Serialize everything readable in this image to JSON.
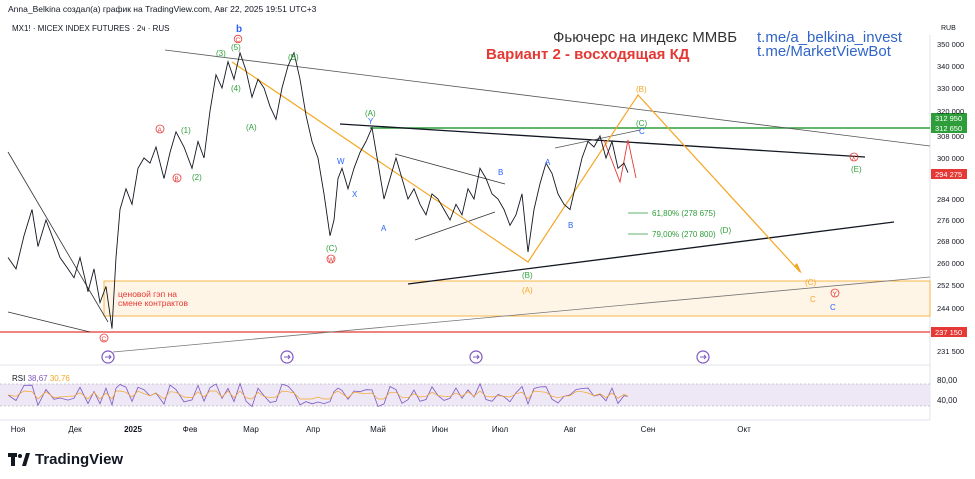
{
  "header": {
    "author_line": "Anna_Belkina создал(а) график на TradingView.com, Авг 22, 2025 19:51 UTC+3",
    "symbol_line": "MX1! · MICEX INDEX FUTURES · 2ч · RUS",
    "currency": "RUB"
  },
  "annotations": {
    "title": "Фьючерс на индекс ММВБ",
    "subtitle": "Вариант 2 - восходящая КД",
    "link1": "t.me/a_belkina_invest",
    "link2": "t.me/MarketViewBot",
    "gap_label_1": "ценовой гэп на",
    "gap_label_2": "смене контрактов",
    "fib_618": "61,80% (278 675)",
    "fib_79": "79,00% (270 800)"
  },
  "brand": "TradingView",
  "colors": {
    "green": "#2e9e3a",
    "red": "#e53935",
    "blue": "#2962ff",
    "orange": "#f5a623",
    "purple": "#7e57c2"
  },
  "chart_data": {
    "type": "line",
    "ylim": [
      226000,
      356000
    ],
    "yticks": [
      {
        "v": 350000,
        "label": "350 000"
      },
      {
        "v": 340000,
        "label": "340 000"
      },
      {
        "v": 330000,
        "label": "330 000"
      },
      {
        "v": 320000,
        "label": "320 000"
      },
      {
        "v": 308000,
        "label": "308 000"
      },
      {
        "v": 300000,
        "label": "300 000"
      },
      {
        "v": 284000,
        "label": "284 000"
      },
      {
        "v": 276000,
        "label": "276 000"
      },
      {
        "v": 268000,
        "label": "268 000"
      },
      {
        "v": 260000,
        "label": "260 000"
      },
      {
        "v": 252500,
        "label": "252 500"
      },
      {
        "v": 244000,
        "label": "244 000"
      },
      {
        "v": 231500,
        "label": "231 500"
      }
    ],
    "xlabels": [
      "Ноя",
      "Дек",
      "2025",
      "Фев",
      "Мар",
      "Апр",
      "Май",
      "Июн",
      "Июл",
      "Авг",
      "Сен",
      "Окт"
    ],
    "price_tags": [
      {
        "v": 312950,
        "label": "312 950",
        "color": "#2e9e3a"
      },
      {
        "v": 312650,
        "label": "312 650",
        "color": "#2e9e3a"
      },
      {
        "v": 294275,
        "label": "294 275",
        "color": "#e53935"
      },
      {
        "v": 237150,
        "label": "237 150",
        "color": "#e53935"
      }
    ],
    "series": [
      {
        "x": [
          0,
          8,
          16,
          24,
          30,
          38,
          46,
          52,
          60,
          66,
          72,
          80,
          86,
          92,
          98,
          104,
          108,
          112,
          118,
          124,
          130,
          136,
          142,
          148,
          156,
          162,
          168,
          176,
          184,
          190,
          196,
          202,
          208,
          214,
          220,
          226,
          232,
          238,
          244,
          250,
          256,
          262,
          268,
          274,
          280,
          286,
          292,
          298,
          304,
          310,
          316,
          322,
          326,
          330,
          334,
          340,
          346,
          352,
          358,
          364,
          370,
          376,
          382,
          388,
          394,
          400,
          406,
          412,
          418,
          424,
          430,
          436,
          442,
          448,
          454,
          460,
          466,
          472,
          478,
          484,
          490,
          496,
          502,
          508,
          514,
          520,
          526,
          532,
          538,
          544,
          550,
          556,
          562,
          568,
          574,
          580,
          586,
          592,
          598,
          604,
          610,
          616,
          620
        ],
        "y": [
          262000,
          258000,
          270000,
          280000,
          266000,
          276000,
          268000,
          262000,
          258000,
          255000,
          262000,
          250000,
          258000,
          246000,
          252000,
          238000,
          262000,
          280000,
          288000,
          282000,
          296000,
          300000,
          298000,
          304000,
          292000,
          302000,
          310000,
          304000,
          296000,
          306000,
          300000,
          320000,
          336000,
          330000,
          342000,
          334000,
          346000,
          338000,
          326000,
          334000,
          330000,
          322000,
          316000,
          330000,
          340000,
          346000,
          334000,
          318000,
          306000,
          300000,
          286000,
          270000,
          276000,
          292000,
          296000,
          288000,
          296000,
          302000,
          306000,
          312000,
          298000,
          284000,
          292000,
          300000,
          292000,
          284000,
          288000,
          282000,
          278000,
          286000,
          284000,
          280000,
          276000,
          282000,
          278000,
          288000,
          284000,
          296000,
          292000,
          286000,
          284000,
          280000,
          274000,
          278000,
          286000,
          264000,
          280000,
          290000,
          298000,
          294000,
          286000,
          282000,
          280000,
          290000,
          300000,
          306000,
          304000,
          308000,
          300000,
          306000,
          296000,
          298000,
          294275
        ]
      }
    ]
  }
}
